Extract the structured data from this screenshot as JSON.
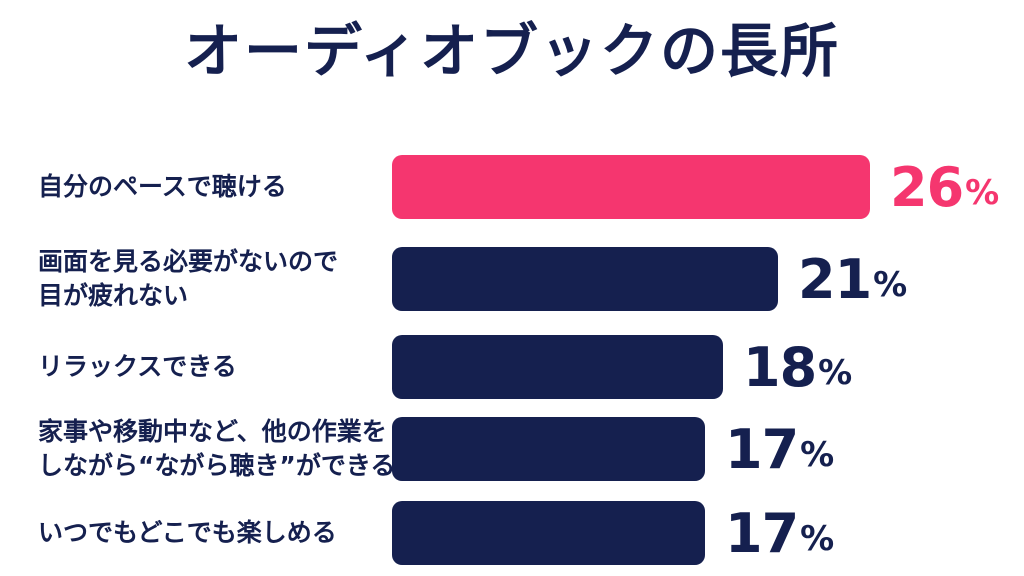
{
  "title": "オーディオブックの長所",
  "colors": {
    "highlight": "#f5366f",
    "bar": "#15204f",
    "text": "#15204f"
  },
  "chart_data": {
    "type": "bar",
    "orientation": "horizontal",
    "title": "オーディオブックの長所",
    "unit": "%",
    "categories": [
      [
        "自分のペースで聴ける"
      ],
      [
        "画面を見る必要がないので",
        "目が疲れない"
      ],
      [
        "リラックスできる"
      ],
      [
        "家事や移動中など、他の作業を",
        "しながら“ながら聴き”ができる"
      ],
      [
        "いつでもどこでも楽しめる"
      ]
    ],
    "values": [
      26,
      21,
      18,
      17,
      17
    ],
    "value_labels": [
      "26",
      "21",
      "18",
      "17",
      "17"
    ],
    "highlight_index": 0,
    "grid": false,
    "legend": "none"
  }
}
